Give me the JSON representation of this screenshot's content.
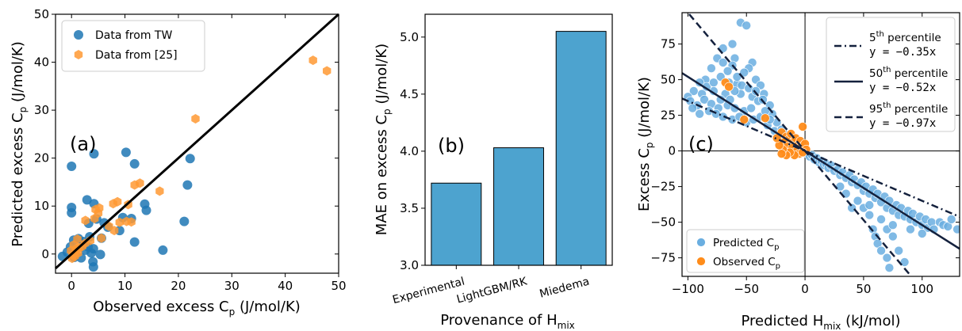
{
  "chart_data": [
    {
      "type": "scatter",
      "panel_label": "(a)",
      "xlabel": "Observed excess C",
      "xlabel_sub": "p",
      "xlabel_unit": " (J/mol/K)",
      "ylabel": "Predicted excess C",
      "ylabel_sub": "p",
      "ylabel_unit": " (J/mol/K)",
      "xlim": [
        -3,
        50
      ],
      "ylim": [
        -4,
        50
      ],
      "xticks": [
        0,
        10,
        20,
        30,
        40,
        50
      ],
      "yticks": [
        0,
        10,
        20,
        30,
        40,
        50
      ],
      "legend_position": "upper-left",
      "colors": {
        "tw": "#1f77b4",
        "lit": "#ff9933",
        "line": "#000000"
      },
      "series": [
        {
          "name": "Data from TW",
          "marker": "circle",
          "points": [
            [
              0,
              18.3
            ],
            [
              4.2,
              20.9
            ],
            [
              10.2,
              21.2
            ],
            [
              11.8,
              18.8
            ],
            [
              22.2,
              19.9
            ],
            [
              21.7,
              14.4
            ],
            [
              13.7,
              10.4
            ],
            [
              14.0,
              9.1
            ],
            [
              21.1,
              6.8
            ],
            [
              17.1,
              0.8
            ],
            [
              11.8,
              2.5
            ],
            [
              0,
              9.7
            ],
            [
              0,
              8.6
            ],
            [
              2.9,
              11.3
            ],
            [
              4.2,
              10.5
            ],
            [
              3.2,
              6.4
            ],
            [
              4.7,
              7.3
            ],
            [
              6.8,
              5.6
            ],
            [
              9.6,
              7.6
            ],
            [
              11.2,
              7.4
            ],
            [
              9.0,
              4.9
            ],
            [
              -1.7,
              -0.5
            ],
            [
              -0.8,
              0.4
            ],
            [
              -0.2,
              1.5
            ],
            [
              0.4,
              2.9
            ],
            [
              1.3,
              3.2
            ],
            [
              2.2,
              2.6
            ],
            [
              3.1,
              1.5
            ],
            [
              4.1,
              1.1
            ],
            [
              0.5,
              -0.7
            ],
            [
              1.8,
              -0.8
            ],
            [
              3.7,
              0.2
            ],
            [
              4.0,
              -1.6
            ],
            [
              4.1,
              -2.7
            ],
            [
              5.4,
              -0.1
            ],
            [
              5.6,
              3.3
            ],
            [
              3.4,
              3.6
            ],
            [
              0.6,
              0.2
            ],
            [
              2.6,
              0.8
            ],
            [
              6.1,
              6.5
            ]
          ]
        },
        {
          "name": "Data from [25]",
          "marker": "hexagon",
          "points": [
            [
              45.2,
              40.4
            ],
            [
              47.8,
              38.2
            ],
            [
              23.2,
              28.2
            ],
            [
              16.5,
              13.1
            ],
            [
              12.8,
              14.8
            ],
            [
              11.8,
              14.4
            ],
            [
              10.6,
              10.3
            ],
            [
              8.6,
              10.9
            ],
            [
              7.8,
              10.5
            ],
            [
              5.2,
              9.6
            ],
            [
              4.5,
              9.3
            ],
            [
              5.0,
              8.5
            ],
            [
              4.3,
              7.4
            ],
            [
              2.6,
              7.0
            ],
            [
              7.0,
              5.8
            ],
            [
              8.0,
              4.9
            ],
            [
              10.3,
              6.8
            ],
            [
              11.2,
              6.7
            ],
            [
              9.0,
              6.6
            ],
            [
              5.6,
              3.3
            ],
            [
              3.5,
              2.8
            ],
            [
              2.5,
              2.2
            ],
            [
              1.4,
              1.3
            ],
            [
              0.8,
              0.5
            ],
            [
              0.2,
              -0.2
            ],
            [
              0.1,
              -0.9
            ],
            [
              1.1,
              3.1
            ],
            [
              0.4,
              1.9
            ],
            [
              -0.1,
              0.7
            ],
            [
              0.8,
              1.0
            ],
            [
              1.2,
              0.2
            ],
            [
              0.6,
              -0.5
            ],
            [
              2.0,
              1.6
            ]
          ]
        }
      ],
      "reference_line": {
        "from": [
          -3,
          -3
        ],
        "to": [
          50,
          50
        ]
      }
    },
    {
      "type": "bar",
      "panel_label": "(b)",
      "xlabel": "Provenance of H",
      "xlabel_sub": "mix",
      "ylabel": "MAE on excess C",
      "ylabel_sub": "p",
      "ylabel_unit": " (J/mol/K)",
      "categories": [
        "Experimental",
        "LightGBM/RK",
        "Miedema"
      ],
      "values": [
        3.72,
        4.03,
        5.05
      ],
      "ylim": [
        3.0,
        5.2
      ],
      "yticks": [
        "3.0",
        "3.5",
        "4.0",
        "4.5",
        "5.0"
      ],
      "colors": {
        "bar": "#4da3cf",
        "edge": "#000000"
      }
    },
    {
      "type": "scatter",
      "panel_label": "(c)",
      "xlabel": "Predicted H",
      "xlabel_sub": "mix",
      "xlabel_unit": " (kJ/mol)",
      "ylabel": "Excess C",
      "ylabel_sub": "p",
      "ylabel_unit": " (J/mol/K)",
      "xlim": [
        -105,
        132
      ],
      "ylim": [
        -88,
        97
      ],
      "xticks": [
        -100,
        -50,
        0,
        50,
        100
      ],
      "yticks": [
        -75,
        -50,
        -25,
        0,
        25,
        50,
        75
      ],
      "colors": {
        "pred": "#6aaee0",
        "obs": "#ff8c1a",
        "line": "#14213d"
      },
      "fit_lines": [
        {
          "label_pre": "5",
          "label_sup": "th",
          "label_post": " percentile",
          "equation": "y = −0.35x",
          "slope": -0.35,
          "style": "dashdot"
        },
        {
          "label_pre": "50",
          "label_sup": "th",
          "label_post": " percentile",
          "equation": "y = −0.52x",
          "slope": -0.52,
          "style": "solid"
        },
        {
          "label_pre": "95",
          "label_sup": "th",
          "label_post": " percentile",
          "equation": "y = −0.97x",
          "slope": -0.97,
          "style": "dashed"
        }
      ],
      "legend_position": "lower-left",
      "legend_fits_position": "upper-right",
      "series": [
        {
          "name": "Predicted C",
          "name_sub": "p",
          "points": [
            [
              -55,
              90
            ],
            [
              -50,
              88
            ],
            [
              -62,
              75
            ],
            [
              -70,
              72
            ],
            [
              -75,
              65
            ],
            [
              -60,
              65
            ],
            [
              -45,
              62
            ],
            [
              -48,
              58
            ],
            [
              -52,
              55
            ],
            [
              -80,
              58
            ],
            [
              -85,
              50
            ],
            [
              -90,
              48
            ],
            [
              -72,
              52
            ],
            [
              -65,
              48
            ],
            [
              -58,
              47
            ],
            [
              -42,
              50
            ],
            [
              -38,
              46
            ],
            [
              -35,
              40
            ],
            [
              -95,
              42
            ],
            [
              -100,
              38
            ],
            [
              -88,
              40
            ],
            [
              -78,
              42
            ],
            [
              -68,
              40
            ],
            [
              -55,
              40
            ],
            [
              -45,
              38
            ],
            [
              -40,
              35
            ],
            [
              -98,
              35
            ],
            [
              -92,
              32
            ],
            [
              -86,
              36
            ],
            [
              -80,
              33
            ],
            [
              -74,
              30
            ],
            [
              -66,
              32
            ],
            [
              -60,
              30
            ],
            [
              -52,
              28
            ],
            [
              -46,
              30
            ],
            [
              -30,
              32
            ],
            [
              -82,
              28
            ],
            [
              -76,
              26
            ],
            [
              -70,
              24
            ],
            [
              -62,
              22
            ],
            [
              -56,
              24
            ],
            [
              -50,
              20
            ],
            [
              -44,
              22
            ],
            [
              -38,
              24
            ],
            [
              -32,
              18
            ],
            [
              -28,
              26
            ],
            [
              -26,
              14
            ],
            [
              -24,
              20
            ],
            [
              -22,
              10
            ],
            [
              -20,
              15
            ],
            [
              -18,
              12
            ],
            [
              -16,
              8
            ],
            [
              -14,
              10
            ],
            [
              -12,
              6
            ],
            [
              -10,
              8
            ],
            [
              -8,
              4
            ],
            [
              -6,
              6
            ],
            [
              -4,
              3
            ],
            [
              -2,
              2
            ],
            [
              2,
              -2
            ],
            [
              4,
              -4
            ],
            [
              6,
              -3
            ],
            [
              8,
              -6
            ],
            [
              10,
              -5
            ],
            [
              12,
              -8
            ],
            [
              14,
              -7
            ],
            [
              16,
              -10
            ],
            [
              18,
              -9
            ],
            [
              20,
              -12
            ],
            [
              22,
              -10
            ],
            [
              25,
              -14
            ],
            [
              28,
              -13
            ],
            [
              30,
              -17
            ],
            [
              32,
              -15
            ],
            [
              35,
              -19
            ],
            [
              38,
              -17
            ],
            [
              40,
              -22
            ],
            [
              42,
              -20
            ],
            [
              45,
              -24
            ],
            [
              48,
              -22
            ],
            [
              50,
              -28
            ],
            [
              52,
              -25
            ],
            [
              55,
              -30
            ],
            [
              58,
              -27
            ],
            [
              60,
              -33
            ],
            [
              62,
              -30
            ],
            [
              65,
              -36
            ],
            [
              68,
              -32
            ],
            [
              70,
              -40
            ],
            [
              72,
              -35
            ],
            [
              75,
              -42
            ],
            [
              78,
              -38
            ],
            [
              80,
              -45
            ],
            [
              82,
              -40
            ],
            [
              85,
              -46
            ],
            [
              88,
              -42
            ],
            [
              90,
              -48
            ],
            [
              92,
              -44
            ],
            [
              95,
              -50
            ],
            [
              98,
              -46
            ],
            [
              100,
              -52
            ],
            [
              103,
              -48
            ],
            [
              105,
              -54
            ],
            [
              108,
              -50
            ],
            [
              110,
              -55
            ],
            [
              115,
              -50
            ],
            [
              118,
              -52
            ],
            [
              122,
              -53
            ],
            [
              125,
              -48
            ],
            [
              130,
              -55
            ],
            [
              45,
              -35
            ],
            [
              50,
              -40
            ],
            [
              55,
              -45
            ],
            [
              58,
              -55
            ],
            [
              60,
              -60
            ],
            [
              62,
              -65
            ],
            [
              65,
              -70
            ],
            [
              70,
              -75
            ],
            [
              72,
              -82
            ],
            [
              75,
              -60
            ],
            [
              80,
              -70
            ],
            [
              85,
              -78
            ],
            [
              40,
              -40
            ],
            [
              35,
              -30
            ],
            [
              30,
              -25
            ],
            [
              55,
              -38
            ],
            [
              65,
              -48
            ],
            [
              70,
              -55
            ],
            [
              75,
              -52
            ],
            [
              90,
              -55
            ],
            [
              100,
              -58
            ],
            [
              -60,
              42
            ],
            [
              -62,
              60
            ],
            [
              -66,
              56
            ],
            [
              -70,
              62
            ],
            [
              -58,
              52
            ],
            [
              -54,
              46
            ],
            [
              -48,
              44
            ],
            [
              -42,
              42
            ],
            [
              -36,
              36
            ],
            [
              -34,
              28
            ],
            [
              -30,
              22
            ],
            [
              -84,
              45
            ],
            [
              -96,
              30
            ],
            [
              -90,
              26
            ],
            [
              -64,
              36
            ],
            [
              -78,
              48
            ],
            [
              -72,
              36
            ]
          ]
        },
        {
          "name": "Observed C",
          "name_sub": "p",
          "points": [
            [
              -68,
              48
            ],
            [
              -65,
              45
            ],
            [
              -52,
              22
            ],
            [
              -34,
              23
            ],
            [
              -2,
              17
            ],
            [
              -20,
              13
            ],
            [
              -16,
              10
            ],
            [
              -14,
              8
            ],
            [
              -12,
              12
            ],
            [
              -10,
              6
            ],
            [
              -8,
              9
            ],
            [
              -6,
              4
            ],
            [
              -4,
              7
            ],
            [
              -3,
              3
            ],
            [
              -1,
              2
            ],
            [
              0,
              5
            ],
            [
              1,
              1
            ],
            [
              -18,
              6
            ],
            [
              -15,
              3
            ],
            [
              -11,
              2
            ],
            [
              -7,
              0
            ],
            [
              -5,
              -2
            ],
            [
              -9,
              -3
            ],
            [
              -13,
              -1
            ],
            [
              -16,
              -3
            ],
            [
              -19,
              1
            ],
            [
              -22,
              4
            ],
            [
              -24,
              9
            ],
            [
              -20,
              -2
            ],
            [
              -2,
              -1
            ]
          ]
        }
      ]
    }
  ]
}
